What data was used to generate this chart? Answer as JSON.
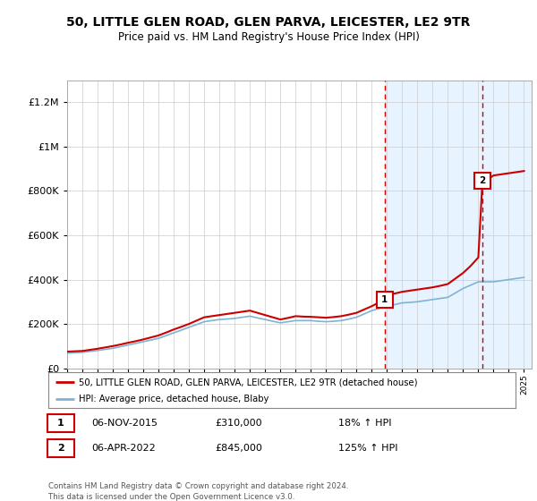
{
  "title": "50, LITTLE GLEN ROAD, GLEN PARVA, LEICESTER, LE2 9TR",
  "subtitle": "Price paid vs. HM Land Registry's House Price Index (HPI)",
  "legend_line1": "50, LITTLE GLEN ROAD, GLEN PARVA, LEICESTER, LE2 9TR (detached house)",
  "legend_line2": "HPI: Average price, detached house, Blaby",
  "annotation1_label": "1",
  "annotation1_date": "06-NOV-2015",
  "annotation1_price": "£310,000",
  "annotation1_hpi": "18% ↑ HPI",
  "annotation2_label": "2",
  "annotation2_date": "06-APR-2022",
  "annotation2_price": "£845,000",
  "annotation2_hpi": "125% ↑ HPI",
  "footer": "Contains HM Land Registry data © Crown copyright and database right 2024.\nThis data is licensed under the Open Government Licence v3.0.",
  "sale1_year": 2015.85,
  "sale2_year": 2022.27,
  "sale1_price": 310000,
  "sale2_price": 845000,
  "red_color": "#cc0000",
  "blue_color": "#7fb3d3",
  "shade_color": "#ddeeff",
  "dashed_color": "#cc0000",
  "background_color": "#ffffff",
  "ylim": [
    0,
    1300000
  ],
  "xlim_start": 1995,
  "xlim_end": 2025.5,
  "hpi_years": [
    1995,
    1995.5,
    1996,
    1996.5,
    1997,
    1997.5,
    1998,
    1998.5,
    1999,
    1999.5,
    2000,
    2000.5,
    2001,
    2001.5,
    2002,
    2002.5,
    2003,
    2003.5,
    2004,
    2004.5,
    2005,
    2005.5,
    2006,
    2006.5,
    2007,
    2007.5,
    2008,
    2008.5,
    2009,
    2009.5,
    2010,
    2010.5,
    2011,
    2011.5,
    2012,
    2012.5,
    2013,
    2013.5,
    2014,
    2014.5,
    2015,
    2015.5,
    2016,
    2016.5,
    2017,
    2017.5,
    2018,
    2018.5,
    2019,
    2019.5,
    2020,
    2020.5,
    2021,
    2021.5,
    2022,
    2022.5,
    2023,
    2023.5,
    2024,
    2024.5,
    2025
  ],
  "hpi_values": [
    68000,
    70000,
    72000,
    76000,
    80000,
    85000,
    90000,
    97000,
    105000,
    112000,
    120000,
    127000,
    135000,
    147000,
    160000,
    172000,
    185000,
    197000,
    210000,
    215000,
    220000,
    222000,
    225000,
    230000,
    235000,
    227000,
    220000,
    212000,
    205000,
    210000,
    215000,
    215000,
    215000,
    212000,
    210000,
    212000,
    215000,
    222000,
    230000,
    245000,
    260000,
    270000,
    280000,
    287000,
    295000,
    297000,
    300000,
    305000,
    310000,
    315000,
    320000,
    340000,
    360000,
    375000,
    390000,
    390000,
    390000,
    395000,
    400000,
    405000,
    410000
  ],
  "red_years": [
    1995,
    1995.5,
    1996,
    1996.5,
    1997,
    1997.5,
    1998,
    1998.5,
    1999,
    1999.5,
    2000,
    2000.5,
    2001,
    2001.5,
    2002,
    2002.5,
    2003,
    2003.5,
    2004,
    2004.5,
    2005,
    2005.5,
    2006,
    2006.5,
    2007,
    2007.5,
    2008,
    2008.5,
    2009,
    2009.5,
    2010,
    2010.5,
    2011,
    2011.5,
    2012,
    2012.5,
    2013,
    2013.5,
    2014,
    2014.5,
    2015,
    2015.85,
    2016,
    2016.5,
    2017,
    2017.5,
    2018,
    2018.5,
    2019,
    2019.5,
    2020,
    2020.5,
    2021,
    2021.5,
    2022,
    2022.27,
    2022.8,
    2023,
    2023.5,
    2024,
    2024.5,
    2025
  ],
  "red_values": [
    75000,
    76500,
    78000,
    83000,
    88000,
    94000,
    100000,
    107000,
    115000,
    122000,
    130000,
    139000,
    148000,
    161000,
    175000,
    187000,
    200000,
    215000,
    230000,
    235000,
    240000,
    245000,
    250000,
    255000,
    260000,
    250000,
    240000,
    230000,
    220000,
    227000,
    235000,
    233000,
    232000,
    230000,
    228000,
    231000,
    235000,
    242000,
    250000,
    265000,
    280000,
    310000,
    330000,
    337000,
    345000,
    350000,
    355000,
    360000,
    365000,
    372000,
    380000,
    405000,
    430000,
    462000,
    500000,
    845000,
    860000,
    870000,
    875000,
    880000,
    885000,
    890000
  ]
}
